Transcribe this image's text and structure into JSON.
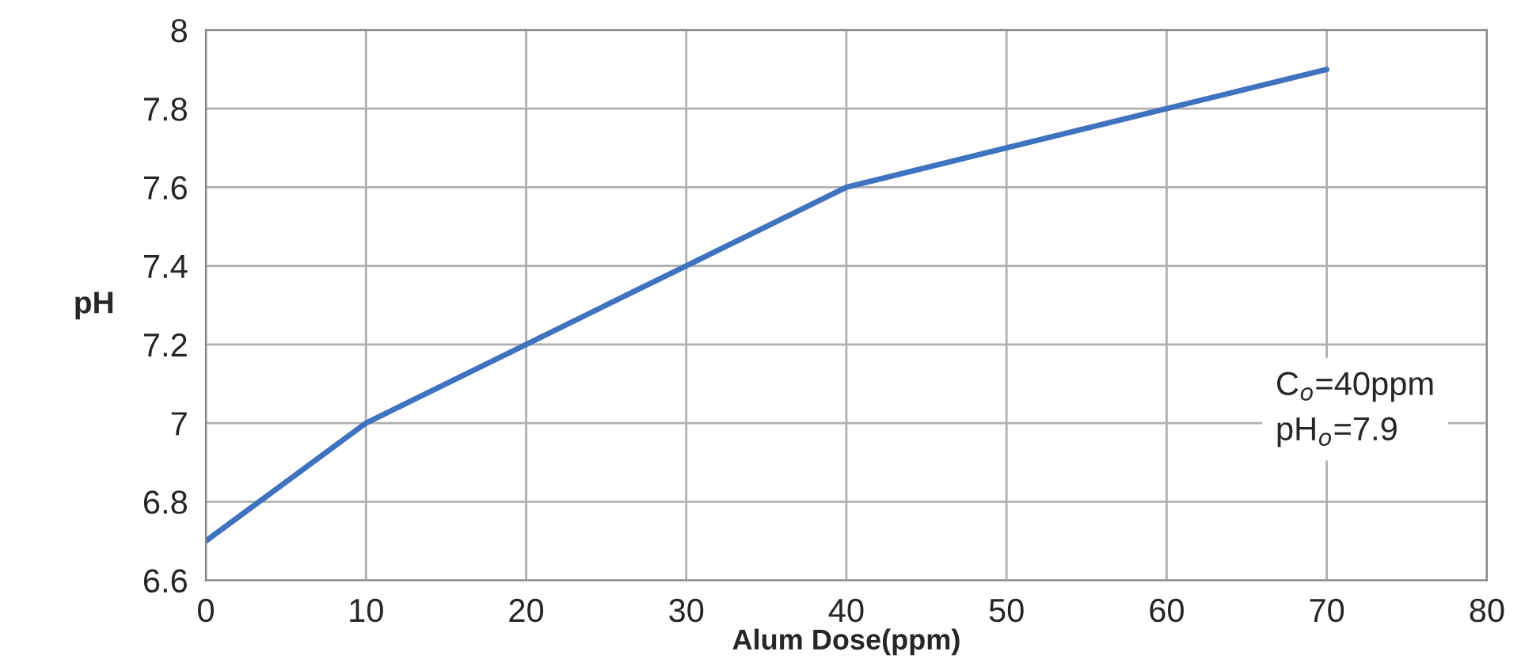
{
  "chart_data": {
    "type": "line",
    "xlabel": "Alum Dose(ppm)",
    "ylabel": "pH",
    "x": [
      0,
      10,
      20,
      30,
      40,
      50,
      60,
      70
    ],
    "series": [
      {
        "color": "#3f73c0",
        "values": [
          6.7,
          7.0,
          7.2,
          7.4,
          7.6,
          7.7,
          7.8,
          7.9
        ]
      }
    ],
    "xlim": [
      0,
      80
    ],
    "xticks": [
      0,
      10,
      20,
      30,
      40,
      50,
      60,
      70,
      80
    ],
    "ylim": [
      6.6,
      8
    ],
    "yticks": [
      6.6,
      6.8,
      7,
      7.2,
      7.4,
      7.6,
      7.8,
      8
    ],
    "grid": true,
    "marker": "none",
    "line_style": "solid",
    "annotations": [
      "C$_{o}$=40ppm\npH$_{o}$=7.9"
    ]
  }
}
